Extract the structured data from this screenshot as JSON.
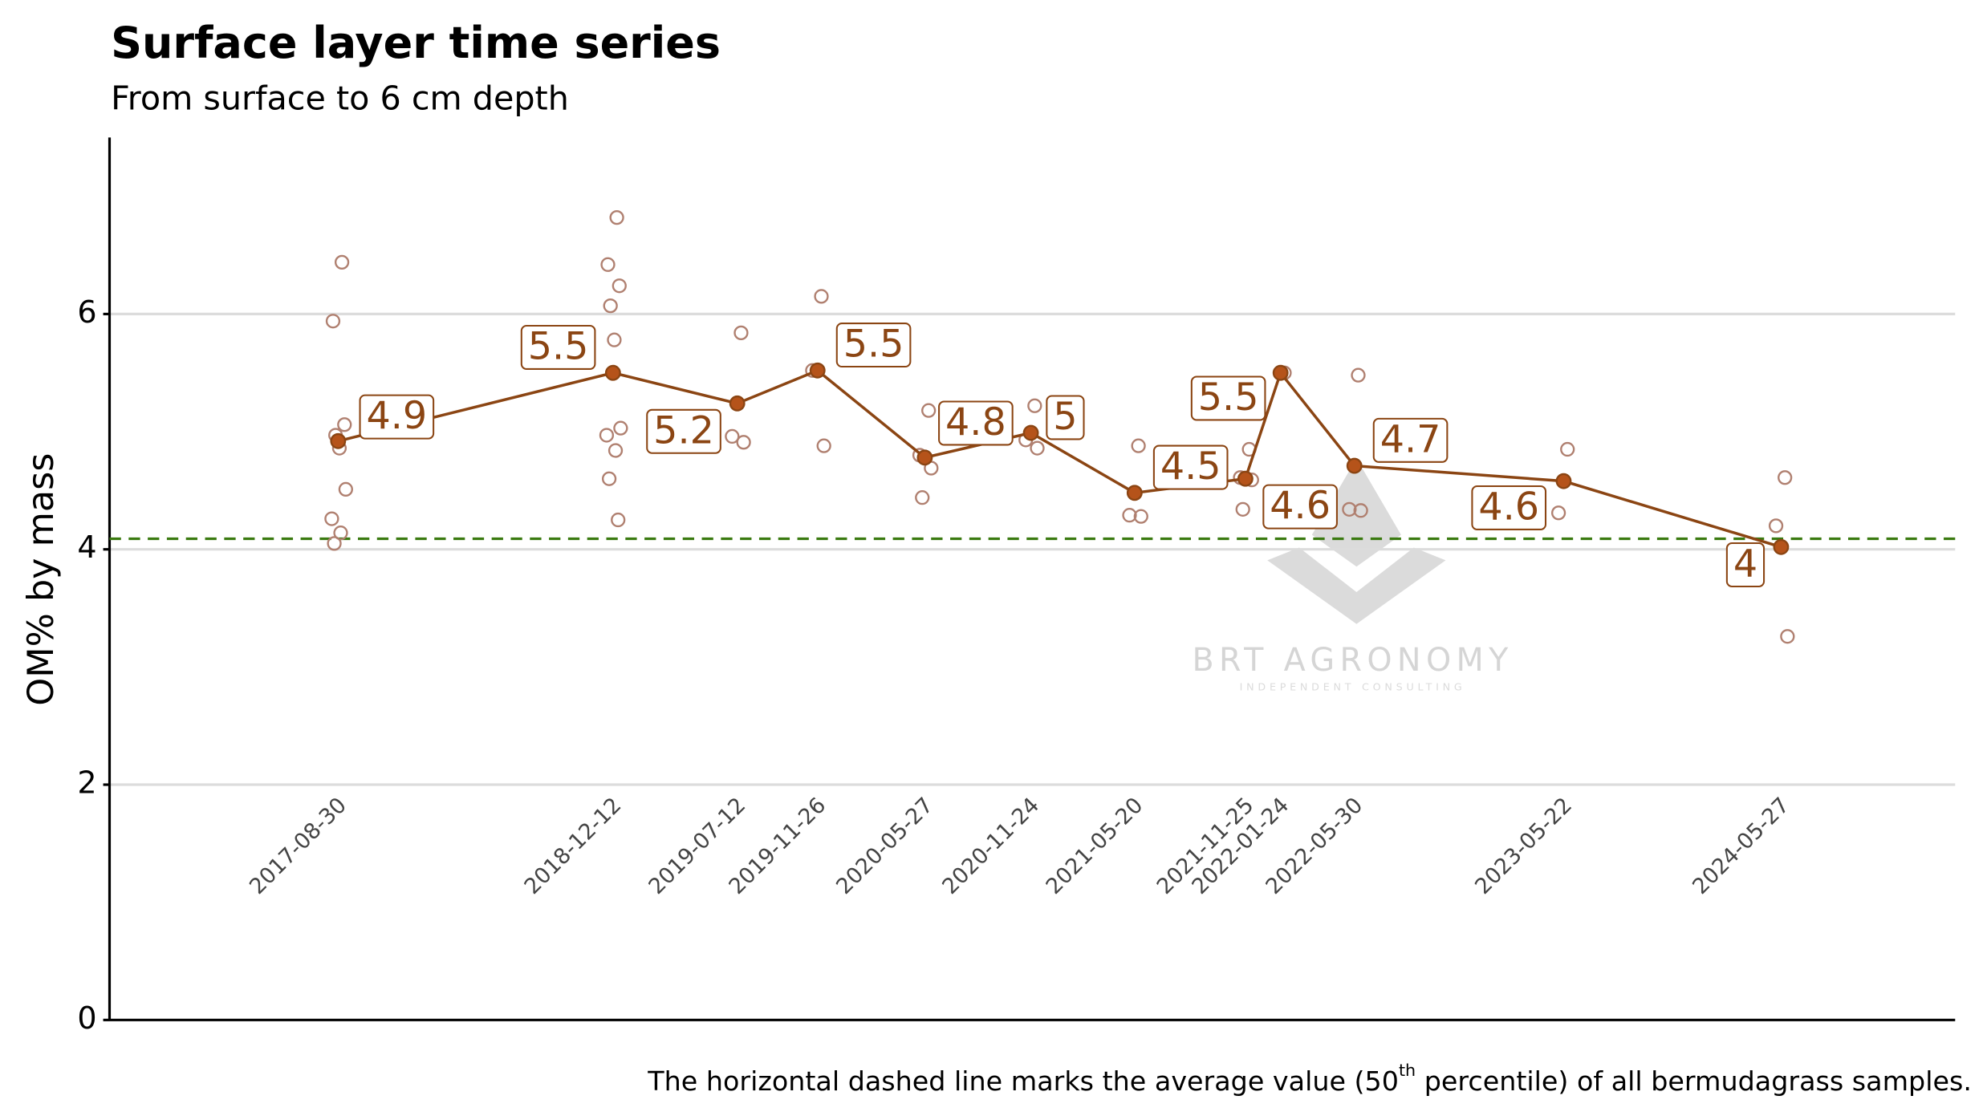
{
  "chart_data": {
    "type": "line",
    "title": "Surface layer time series",
    "subtitle": "From surface to 6 cm depth",
    "y_label": "OM% by mass",
    "caption": [
      "The horizontal dashed line marks the average value (50",
      "th",
      " percentile) of all bermudagrass samples."
    ],
    "watermark": {
      "title": "BRT AGRONOMY",
      "subtitle": "INDEPENDENT CONSULTING"
    },
    "x": [
      "2017-08-30",
      "2018-12-12",
      "2019-07-12",
      "2019-11-26",
      "2020-05-27",
      "2020-11-24",
      "2021-05-20",
      "2021-11-25",
      "2022-01-24",
      "2022-05-30",
      "2023-05-22",
      "2024-05-27"
    ],
    "series": [
      {
        "color": "#8b4513",
        "values": [
          4.92,
          5.5,
          5.24,
          5.52,
          4.78,
          4.99,
          4.48,
          4.6,
          5.5,
          4.71,
          4.58,
          4.02
        ],
        "value_labels": [
          "4.9",
          "5.5",
          "5.2",
          "5.5",
          "4.8",
          "5",
          "4.5",
          "4.6",
          "5.5",
          "4.7",
          "4.6",
          "4"
        ]
      }
    ],
    "samples": {
      "color": "#b08070",
      "groups": [
        {
          "x": "2017-08-30",
          "values": [
            6.44,
            5.94,
            5.06,
            4.97,
            4.86,
            4.51,
            4.26,
            4.14,
            4.05
          ]
        },
        {
          "x": "2018-12-12",
          "values": [
            6.82,
            6.42,
            6.24,
            6.07,
            5.78,
            5.03,
            4.97,
            4.84,
            4.6,
            4.25
          ]
        },
        {
          "x": "2019-07-12",
          "values": [
            5.84,
            4.96,
            4.91
          ]
        },
        {
          "x": "2019-11-26",
          "values": [
            6.15,
            5.52,
            4.88
          ]
        },
        {
          "x": "2020-05-27",
          "values": [
            5.18,
            4.8,
            4.69,
            4.44
          ]
        },
        {
          "x": "2020-11-24",
          "values": [
            5.22,
            4.93,
            4.86
          ]
        },
        {
          "x": "2021-05-20",
          "values": [
            4.88,
            4.29,
            4.28
          ]
        },
        {
          "x": "2021-11-25",
          "values": [
            4.85,
            4.61,
            4.59,
            4.34
          ]
        },
        {
          "x": "2022-01-24",
          "values": [
            5.5
          ]
        },
        {
          "x": "2022-05-30",
          "values": [
            5.48,
            4.34,
            4.33
          ]
        },
        {
          "x": "2023-05-22",
          "values": [
            4.85,
            4.31
          ]
        },
        {
          "x": "2024-05-27",
          "values": [
            4.61,
            4.2,
            3.26
          ]
        }
      ]
    },
    "reference_line": {
      "value": 4.09,
      "color": "#3a7a10"
    },
    "xlim": [
      "2016-08-05",
      "2025-03-20"
    ],
    "ylim": [
      0,
      7.5
    ],
    "yticks": [
      0,
      2,
      4,
      6
    ],
    "grid": true
  }
}
